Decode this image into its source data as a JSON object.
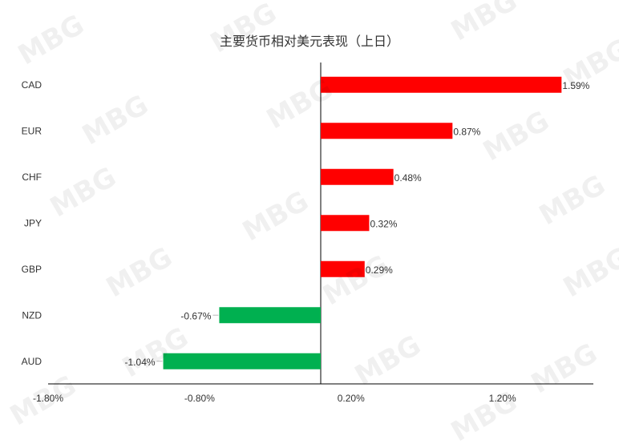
{
  "chart_data": {
    "type": "bar",
    "orientation": "horizontal",
    "title": "主要货币相对美元表现（上日）",
    "categories": [
      "CAD",
      "EUR",
      "CHF",
      "JPY",
      "GBP",
      "NZD",
      "AUD"
    ],
    "values": [
      1.59,
      0.87,
      0.48,
      0.32,
      0.29,
      -0.67,
      -1.04
    ],
    "value_labels": [
      "1.59%",
      "0.87%",
      "0.48%",
      "0.32%",
      "0.29%",
      "-0.67%",
      "-1.04%"
    ],
    "x_ticks": [
      -1.8,
      -0.8,
      0.2,
      1.2
    ],
    "x_tick_labels": [
      "-1.80%",
      "-0.80%",
      "0.20%",
      "1.20%"
    ],
    "xlim": [
      -1.8,
      1.8
    ],
    "colors": {
      "positive": "#ff0000",
      "negative": "#00b050"
    },
    "grid": false,
    "legend": "none"
  },
  "watermark": "MBG"
}
